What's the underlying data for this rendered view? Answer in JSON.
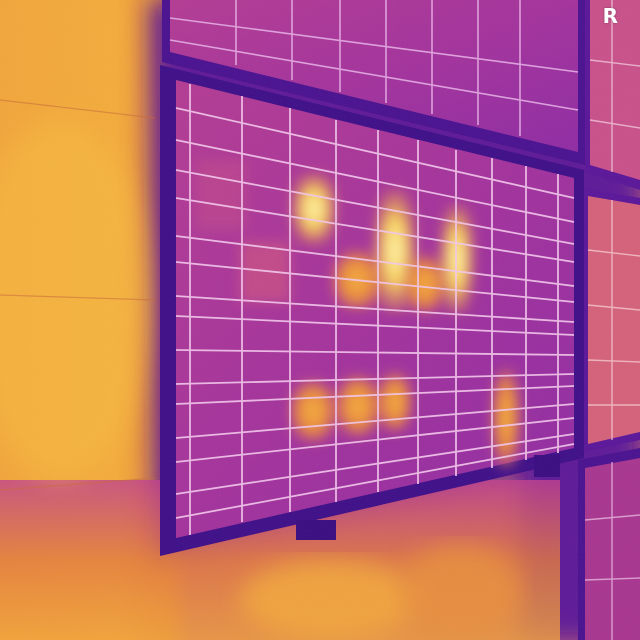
{
  "image": {
    "description_type": "thermal-infrared-photo",
    "palette": {
      "cold": "#3a0a8a",
      "cool": "#7a1fb0",
      "mid": "#c2458e",
      "warm": "#e8833a",
      "hot": "#f6b23a",
      "hottest": "#fff3a8"
    },
    "brand_mark": "R"
  }
}
